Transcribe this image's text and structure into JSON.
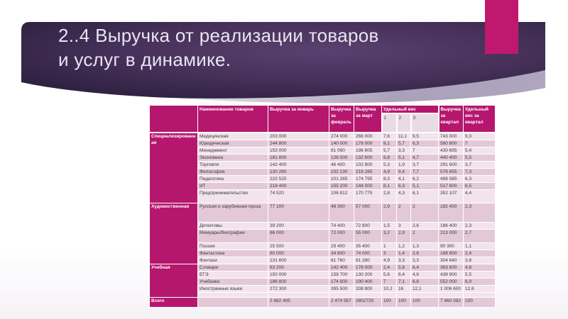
{
  "slide": {
    "title_line1": "2..4 Выручка от реализации товаров",
    "title_line2": "и услуг в динамике.",
    "colors": {
      "accent_rect": "#c1186f",
      "banner_center": "#5a4170",
      "banner_edge": "#241a36",
      "swoosh": "#9c90ae",
      "header_magenta": "#b5176e",
      "row_light": "#f2e3ec",
      "row_dark": "#e3c8d8",
      "subheader_fill": "#e8dbe2"
    }
  },
  "table": {
    "header": {
      "product": "Наименование товаров",
      "jan": "Выручка за январь",
      "feb": "Выручка за февраль",
      "mar": "Выручка за март",
      "weight": "Удельный вес",
      "sub": [
        "1",
        "2",
        "3"
      ],
      "quarter": "Выручка за квартал",
      "weight_quarter": "Удельный вес за квартал"
    },
    "rows": [
      {
        "group": "Специализированная",
        "group_rows": 9,
        "shade": "light",
        "cells": [
          "Медицинская",
          "203 000",
          "274 000",
          "266 000",
          "7,6",
          "11,1",
          "9,5",
          "743 000",
          "9,3"
        ]
      },
      {
        "shade": "dark",
        "cells": [
          "Юридическая",
          "244 800",
          "140 000",
          "176 000",
          "9,1",
          "5,7",
          "6,3",
          "560 800",
          "7"
        ]
      },
      {
        "shade": "light",
        "cells": [
          "Менеджмент",
          "153 000",
          "81 090",
          "196 605",
          "5,7",
          "3,3",
          "7",
          "430 695",
          "5,4"
        ]
      },
      {
        "shade": "dark",
        "cells": [
          "Экономика",
          "181 800",
          "126 000",
          "132 600",
          "6,8",
          "5,1",
          "4,7",
          "440 400",
          "5,5"
        ]
      },
      {
        "shade": "light",
        "cells": [
          "Торговля",
          "142 400",
          "46 400",
          "102 800",
          "5,3",
          "1,9",
          "3,7",
          "291 600",
          "3,7"
        ]
      },
      {
        "shade": "dark",
        "cells": [
          "Философия",
          "130 260",
          "232 130",
          "216 265",
          "4,9",
          "9,4",
          "7,7",
          "578 655",
          "7,3"
        ]
      },
      {
        "shade": "light",
        "cells": [
          "Педагогика",
          "222 525",
          "101 265",
          "174 795",
          "8,3",
          "4,1",
          "6,2",
          "498 585",
          "6,3"
        ]
      },
      {
        "shade": "dark",
        "cells": [
          "ИТ",
          "218 400",
          "155 200",
          "144 000",
          "8,1",
          "6,3",
          "5,1",
          "517 600",
          "6,5"
        ]
      },
      {
        "shade": "light",
        "lines": 2,
        "cells": [
          "Предпринимательство",
          "74 520",
          "106 812",
          "170 775",
          "2,8",
          "4,3",
          "6,1",
          "352 107",
          "4,4"
        ]
      },
      {
        "group": "Художественная",
        "group_rows": 6,
        "shade": "dark",
        "lines": 3,
        "cells": [
          "Русская и зарубежная проза",
          "77 100",
          "48 300",
          "57 000",
          "2,9",
          "2",
          "2",
          "182 400",
          "2,3"
        ]
      },
      {
        "shade": "light",
        "cells": [
          "Детективы",
          "39 200",
          "74 400",
          "72 800",
          "1,5",
          "3",
          "2,6",
          "186 400",
          "2,3"
        ]
      },
      {
        "shade": "dark",
        "lines": 2,
        "cells": [
          "Мемуары/биографии",
          "86 000",
          "72 000",
          "55 000",
          "3,2",
          "2,9",
          "2",
          "213 000",
          "2,7"
        ]
      },
      {
        "shade": "light",
        "cells": [
          "Поэзия",
          "25 500",
          "29 400",
          "35 400",
          "1",
          "1,2",
          "1,3",
          "90 300",
          "1,1"
        ]
      },
      {
        "shade": "dark",
        "cells": [
          "Фантастика",
          "80 000",
          "34 800",
          "74 000",
          "3",
          "1,4",
          "2,6",
          "188 800",
          "2,4"
        ]
      },
      {
        "shade": "light",
        "cells": [
          "Фэнтази",
          "131 600",
          "81 760",
          "91 280",
          "4,9",
          "3,3",
          "3,3",
          "304 640",
          "3,8"
        ]
      },
      {
        "group": "Учебная",
        "group_rows": 5,
        "shade": "dark",
        "cells": [
          "Словари",
          "63 200",
          "142 400",
          "178 000",
          "2,4",
          "5,8",
          "6,4",
          "383 600",
          "4,8"
        ]
      },
      {
        "shade": "light",
        "cells": [
          "ЕГЭ",
          "150 000",
          "158 700",
          "130 200",
          "5,6",
          "6,4",
          "4,6",
          "438 900",
          "5,5"
        ]
      },
      {
        "shade": "dark",
        "cells": [
          "Учебники",
          "186 800",
          "174 800",
          "190 400",
          "7",
          "7,1",
          "6,8",
          "552 000",
          "6,9"
        ]
      },
      {
        "shade": "light",
        "cells": [
          "Иностранные языки",
          "272 300",
          "395 500",
          "338 800",
          "10,2",
          "16",
          "12,1",
          "1 006 600",
          "12,6"
        ]
      },
      {
        "shade": "light",
        "blank": true,
        "cells": [
          "",
          "",
          "",
          "",
          "",
          "",
          "",
          "",
          ""
        ]
      },
      {
        "group": "Всего",
        "group_rows": 1,
        "shade": "dark",
        "total": true,
        "cells": [
          "",
          "2 682 405",
          "2 474 957",
          "2802720",
          "100",
          "100",
          "100",
          "7 960 082",
          "100"
        ]
      }
    ]
  }
}
